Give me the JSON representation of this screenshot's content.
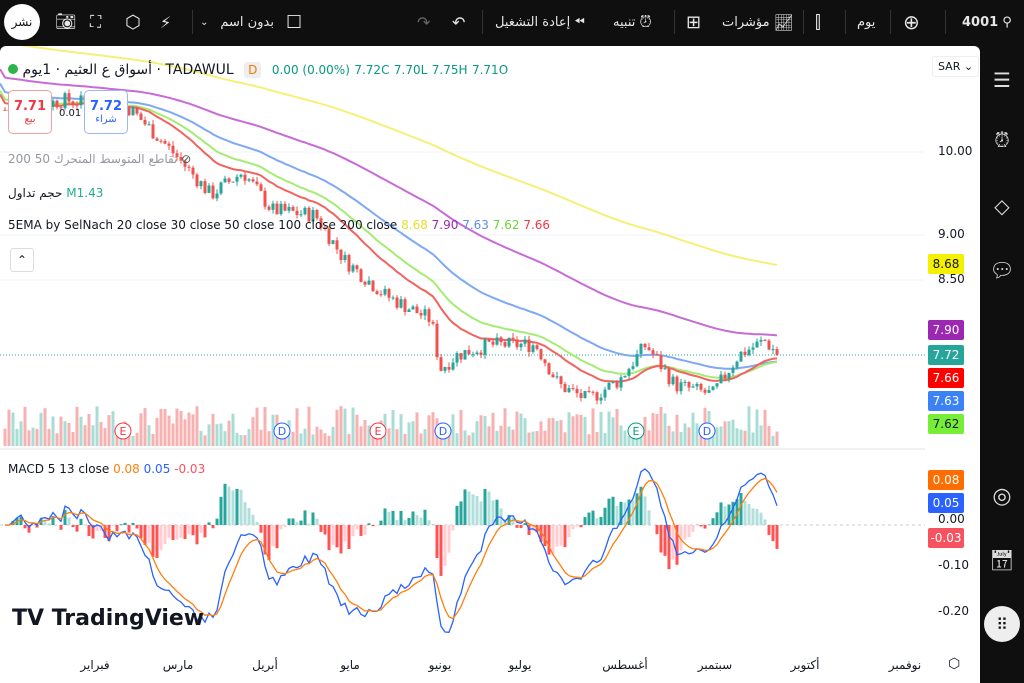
{
  "toolbar": {
    "symbol": "4001",
    "interval": "يوم",
    "indicators": "مؤشرات",
    "alert": "تنبيه",
    "replay": "إعادة التشغيل",
    "layout_name": "بدون اسم",
    "publish": "نشر",
    "icons": [
      "search-icon",
      "add-symbol-icon",
      "candles-icon",
      "indicators-icon",
      "templates-icon",
      "alert-icon",
      "replay-icon",
      "undo-icon",
      "redo-icon",
      "layout-icon",
      "chevron-down-icon",
      "quick-search-icon",
      "settings-icon",
      "fullscreen-icon",
      "camera-icon"
    ]
  },
  "legend": {
    "title": "أسواق ع العثيم · 1يوم · TADAWUL",
    "interval_badge": "D",
    "change": "0.00 (0.00%)",
    "close": "7.72C",
    "low": "7.70L",
    "high": "7.75H",
    "open": "7.71O",
    "sell_price": "7.71",
    "sell_label": "بيع",
    "spread": "0.01",
    "buy_price": "7.72",
    "buy_label": "شراء",
    "ma_cross": "تقاطع المتوسط المتحرك 50 200",
    "volume_label": "حجم تداول",
    "volume_value": "M1.43",
    "ema_title": "5EMA by SelNach 20 close 30 close 50 close 100 close 200 close",
    "ema_values": [
      "8.68",
      "7.90",
      "7.63",
      "7.62",
      "7.66"
    ],
    "macd_title": "MACD 5 13 close",
    "macd_values": [
      "0.08",
      "0.05",
      "-0.03"
    ],
    "currency": "SAR"
  },
  "colors": {
    "up": "#26a69a",
    "down": "#ef5350",
    "ema20": "#f2635f",
    "ema30": "#a4ec72",
    "ema50": "#7fa8f5",
    "ema100": "#c76bd6",
    "ema200": "#f4f078",
    "macd": "#2962ff",
    "signal": "#ff7f0e"
  },
  "price_axis": {
    "ticks": [
      "10.00",
      "9.00",
      "8.50"
    ],
    "labels": [
      {
        "v": "8.68",
        "c": "#f5ef00",
        "t": "#131722"
      },
      {
        "v": "7.90",
        "c": "#9c27b0",
        "t": "#fff"
      },
      {
        "v": "7.72",
        "c": "#26a69a",
        "t": "#fff"
      },
      {
        "v": "7.66",
        "c": "#f00",
        "t": "#fff"
      },
      {
        "v": "7.63",
        "c": "#3b82f6",
        "t": "#fff"
      },
      {
        "v": "7.62",
        "c": "#76ee38",
        "t": "#131722"
      }
    ]
  },
  "macd_axis": {
    "ticks": [
      "0.00",
      "-0.10",
      "-0.20"
    ],
    "labels": [
      {
        "v": "0.08",
        "c": "#ff6d00"
      },
      {
        "v": "0.05",
        "c": "#2962ff"
      },
      {
        "v": "-0.03",
        "c": "#f7525f"
      }
    ]
  },
  "time_axis": [
    "فبراير",
    "مارس",
    "أبريل",
    "مايو",
    "يونيو",
    "يوليو",
    "أغسطس",
    "سبتمبر",
    "أكتوبر",
    "نوفمبر"
  ],
  "events": [
    "E",
    "D",
    "E",
    "D",
    "E",
    "D"
  ],
  "watermark": "TradingView",
  "chart_data": {
    "type": "candlestick",
    "scale": "log",
    "ylim": [
      7.0,
      11.0
    ],
    "close_path": [
      [
        "01-08",
        10.55
      ],
      [
        "01-29",
        10.68
      ],
      [
        "02-20",
        10.57
      ],
      [
        "03-06",
        10.03
      ],
      [
        "03-20",
        9.47
      ],
      [
        "03-31",
        9.75
      ],
      [
        "04-10",
        9.29
      ],
      [
        "04-25",
        9.23
      ],
      [
        "05-05",
        8.72
      ],
      [
        "05-19",
        8.34
      ],
      [
        "06-04",
        8.08
      ],
      [
        "06-07",
        7.59
      ],
      [
        "06-13",
        7.73
      ],
      [
        "06-24",
        7.83
      ],
      [
        "07-10",
        7.83
      ],
      [
        "07-18",
        7.44
      ],
      [
        "07-28",
        7.3
      ],
      [
        "08-08",
        7.49
      ],
      [
        "08-17",
        7.83
      ],
      [
        "08-27",
        7.44
      ],
      [
        "09-09",
        7.35
      ],
      [
        "09-18",
        7.73
      ],
      [
        "09-27",
        7.87
      ],
      [
        "10-02",
        7.72
      ]
    ]
  }
}
